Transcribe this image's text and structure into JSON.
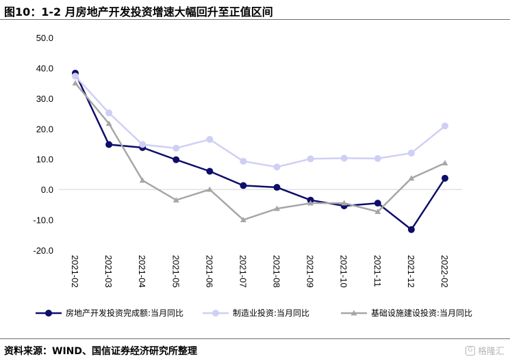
{
  "page": {
    "title": "图10：1-2 月房地产开发投资增速大幅回升至正值区间",
    "source": "资料来源：WIND、国信证券经济研究所整理",
    "watermark": "格隆汇",
    "watermark_icon": "g-logo-icon"
  },
  "chart_data": {
    "type": "line",
    "categories": [
      "2021-02",
      "2021-03",
      "2021-04",
      "2021-05",
      "2021-06",
      "2021-07",
      "2021-08",
      "2021-09",
      "2021-10",
      "2021-11",
      "2021-12",
      "2022-02"
    ],
    "ylim": [
      -20,
      50
    ],
    "yticks": [
      -20,
      -10,
      0,
      10,
      20,
      30,
      40,
      50
    ],
    "ytick_labels": [
      "-20.0",
      "-10.0",
      "0.0",
      "10.0",
      "20.0",
      "30.0",
      "40.0",
      "50.0"
    ],
    "grid": false,
    "legend_position": "bottom",
    "series": [
      {
        "name": "房地产开发投资完成额:当月同比",
        "color": "#0d0d6b",
        "marker": "circle",
        "values": [
          38.3,
          14.8,
          13.8,
          9.8,
          6.0,
          1.3,
          0.7,
          -3.5,
          -5.4,
          -4.5,
          -13.2,
          3.7
        ]
      },
      {
        "name": "制造业投资:当月同比",
        "color": "#cfcff5",
        "marker": "circle",
        "values": [
          37.3,
          25.2,
          14.8,
          13.6,
          16.5,
          9.3,
          7.4,
          10.1,
          10.3,
          10.2,
          12.0,
          20.9
        ]
      },
      {
        "name": "基础设施建设投资:当月同比",
        "color": "#a6a6a6",
        "marker": "triangle",
        "values": [
          35.0,
          21.7,
          3.0,
          -3.5,
          0.0,
          -10.0,
          -6.3,
          -4.5,
          -4.5,
          -7.3,
          3.7,
          8.7
        ]
      }
    ]
  }
}
